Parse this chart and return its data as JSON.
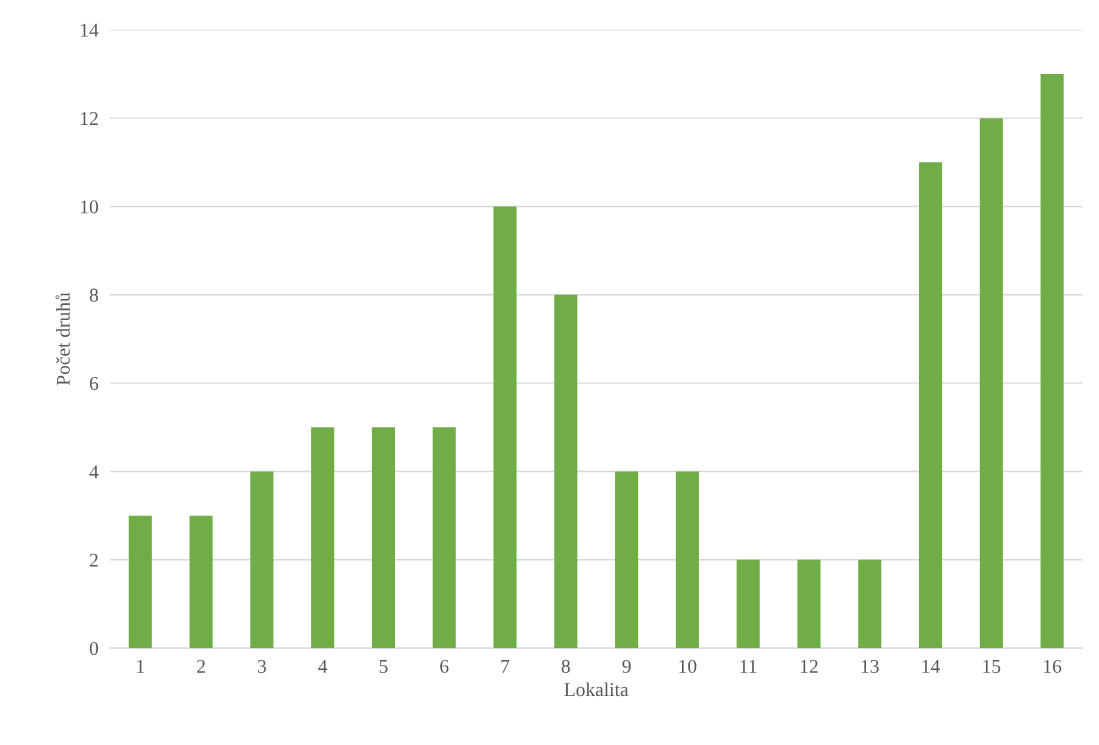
{
  "chart_data": {
    "type": "bar",
    "xlabel": "Lokalita",
    "ylabel": "Počet druhů",
    "categories": [
      "1",
      "2",
      "3",
      "4",
      "5",
      "6",
      "7",
      "8",
      "9",
      "10",
      "11",
      "12",
      "13",
      "14",
      "15",
      "16"
    ],
    "values": [
      3,
      3,
      4,
      5,
      5,
      5,
      10,
      8,
      4,
      4,
      2,
      2,
      2,
      11,
      12,
      13
    ],
    "color": "#70ad47",
    "ylim": [
      0,
      14
    ],
    "yticks": [
      0,
      2,
      4,
      6,
      8,
      10,
      12,
      14
    ],
    "grid": "y"
  }
}
